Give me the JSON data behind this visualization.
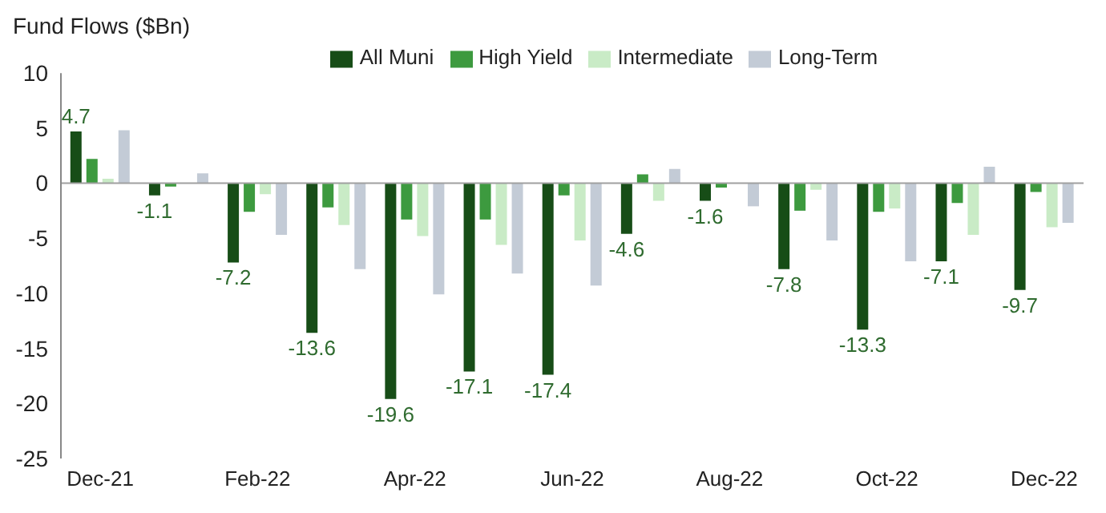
{
  "chart_data": {
    "type": "bar",
    "title": "Fund Flows ($Bn)",
    "categories": [
      "Dec-21",
      null,
      "Feb-22",
      null,
      "Apr-22",
      null,
      "Jun-22",
      null,
      "Aug-22",
      null,
      "Oct-22",
      null,
      "Dec-22"
    ],
    "series": [
      {
        "name": "All Muni",
        "color": "#174d17",
        "values": [
          4.7,
          -1.1,
          -7.2,
          -13.6,
          -19.6,
          -17.1,
          -17.4,
          -4.6,
          -1.6,
          -7.8,
          -13.3,
          -7.1,
          -9.7
        ],
        "value_labels": [
          "4.7",
          "-1.1",
          "-7.2",
          "-13.6",
          "-19.6",
          "-17.1",
          "-17.4",
          "-4.6",
          "-1.6",
          "-7.8",
          "-13.3",
          "-7.1",
          "-9.7"
        ]
      },
      {
        "name": "High Yield",
        "color": "#3d9a3f",
        "values": [
          2.2,
          -0.3,
          -2.6,
          -2.2,
          -3.3,
          -3.3,
          -1.1,
          0.8,
          -0.4,
          -2.5,
          -2.6,
          -1.8,
          -0.8
        ]
      },
      {
        "name": "Intermediate",
        "color": "#c9ebc6",
        "values": [
          0.4,
          0,
          -1.0,
          -3.8,
          -4.8,
          -5.6,
          -5.2,
          -1.6,
          0,
          -0.6,
          -2.3,
          -4.7,
          -4.0
        ]
      },
      {
        "name": "Long-Term",
        "color": "#c3cbd6",
        "values": [
          4.8,
          0.9,
          -4.7,
          -7.8,
          -10.1,
          -8.2,
          -9.3,
          1.3,
          -2.1,
          -5.2,
          -7.1,
          1.5,
          -3.6
        ]
      }
    ],
    "ylim": [
      -25,
      10
    ],
    "yticks": [
      -25,
      -20,
      -15,
      -10,
      -5,
      0,
      5,
      10
    ],
    "ref_lines": [
      {
        "axis": "y",
        "value": 0,
        "color": "#a0a0a0"
      }
    ],
    "legend": "top",
    "grid": false
  }
}
